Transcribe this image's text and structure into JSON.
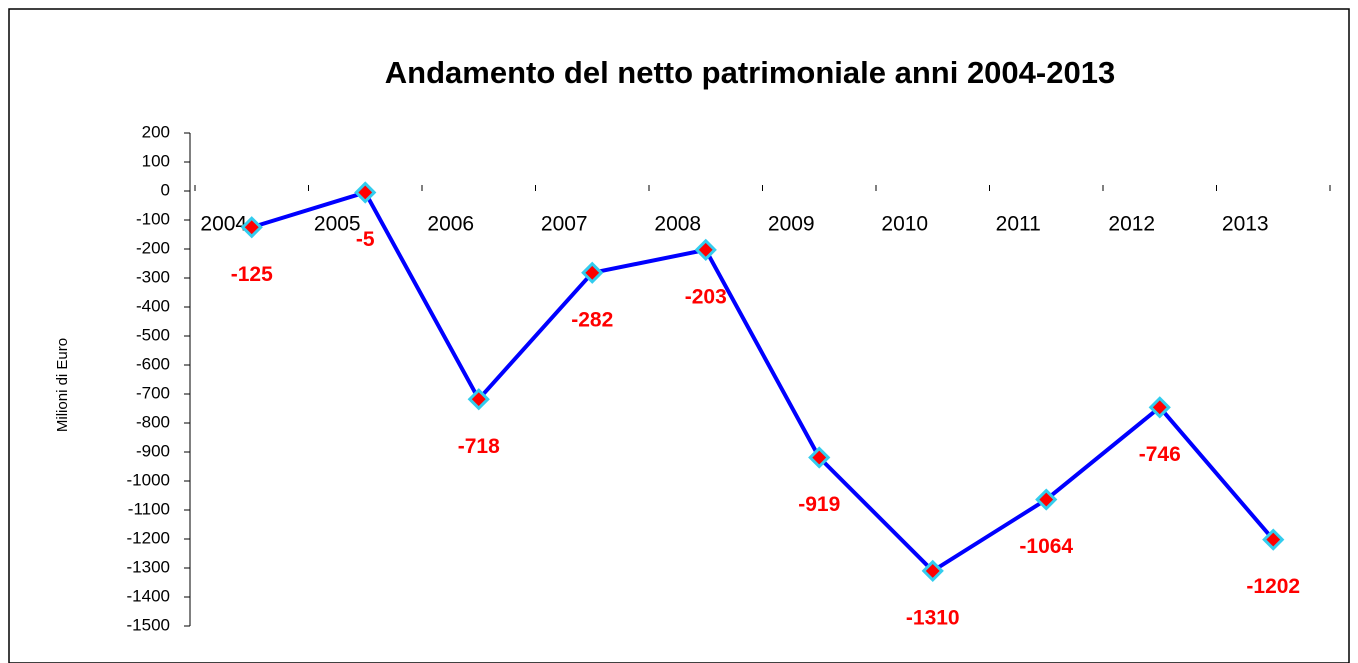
{
  "chart_data": {
    "type": "line",
    "title": "Andamento del netto patrimoniale anni 2004-2013",
    "y_label": "Milioni  di Euro",
    "categories": [
      "2004",
      "2005",
      "2006",
      "2007",
      "2008",
      "2009",
      "2010",
      "2011",
      "2012",
      "2013"
    ],
    "series": [
      {
        "name": "Netto patrimoniale",
        "color": "#0000ff",
        "values": [
          -125,
          -5,
          -718,
          -282,
          -203,
          -919,
          -1310,
          -1064,
          -746,
          -1202
        ]
      }
    ],
    "ylim": [
      -1500,
      200
    ],
    "yticks": [
      200,
      100,
      0,
      -100,
      -200,
      -300,
      -400,
      -500,
      -600,
      -700,
      -800,
      -900,
      -1000,
      -1100,
      -1200,
      -1300,
      -1400,
      -1500
    ]
  }
}
